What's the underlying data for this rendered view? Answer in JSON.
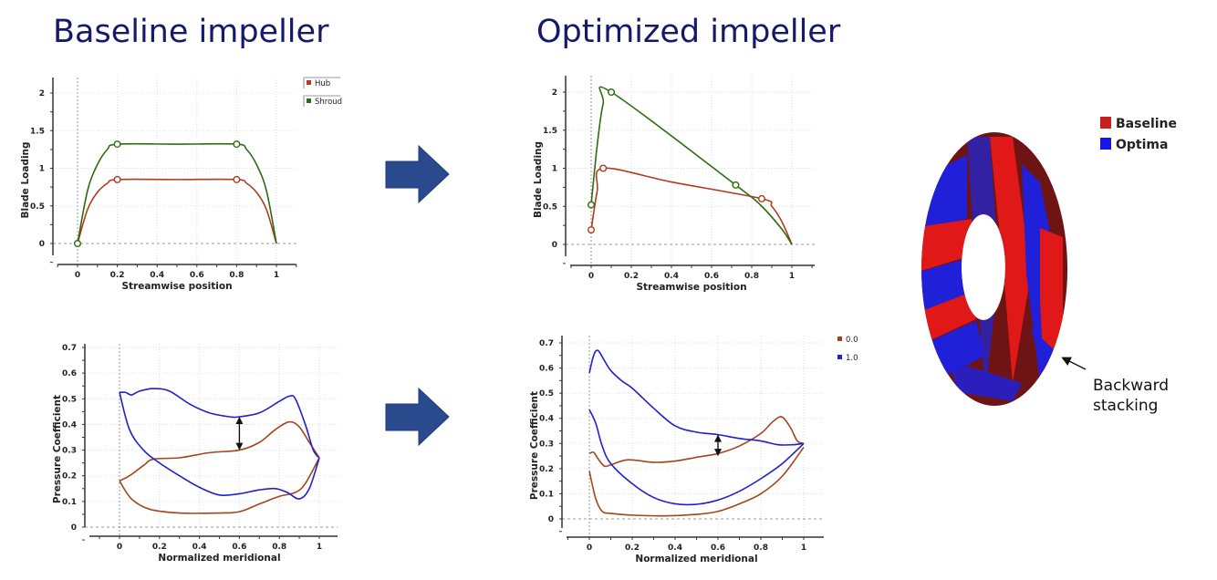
{
  "titles": {
    "left": "Baseline impeller",
    "right": "Optimized impeller"
  },
  "impeller": {
    "legend": [
      {
        "label": "Baseline",
        "color": "#c8201c"
      },
      {
        "label": "Optima",
        "color": "#1616e8"
      }
    ],
    "annotation": [
      "Backward",
      "stacking"
    ]
  },
  "chart_data": [
    {
      "type": "line",
      "xlabel": "Streamwise position",
      "ylabel": "Blade Loading",
      "xlim": [
        -0.1,
        1.1
      ],
      "ylim": [
        -0.2,
        2.2
      ],
      "xticks": [
        "0",
        "0.2",
        "0.4",
        "0.6",
        "0.8",
        "1"
      ],
      "yticks": [
        "0",
        "0.5",
        "1",
        "1.5",
        "2"
      ],
      "grid": true,
      "legend_position": "top-right",
      "series": [
        {
          "name": "Hub",
          "color": "#b23a1e",
          "points": [
            [
              0,
              0
            ],
            [
              0.05,
              0.45
            ],
            [
              0.1,
              0.68
            ],
            [
              0.15,
              0.8
            ],
            [
              0.2,
              0.85
            ],
            [
              0.5,
              0.85
            ],
            [
              0.8,
              0.85
            ],
            [
              0.85,
              0.8
            ],
            [
              0.9,
              0.68
            ],
            [
              0.95,
              0.45
            ],
            [
              1,
              0
            ]
          ],
          "markers": [
            [
              0.2,
              0.85
            ],
            [
              0.8,
              0.85
            ]
          ]
        },
        {
          "name": "Shroud",
          "color": "#2e6b12",
          "points": [
            [
              0,
              0
            ],
            [
              0.05,
              0.7
            ],
            [
              0.1,
              1.05
            ],
            [
              0.15,
              1.25
            ],
            [
              0.2,
              1.32
            ],
            [
              0.5,
              1.32
            ],
            [
              0.8,
              1.32
            ],
            [
              0.85,
              1.25
            ],
            [
              0.9,
              1.05
            ],
            [
              0.95,
              0.7
            ],
            [
              1,
              0
            ]
          ],
          "markers": [
            [
              0,
              0
            ],
            [
              0.2,
              1.32
            ],
            [
              0.8,
              1.32
            ]
          ]
        }
      ]
    },
    {
      "type": "line",
      "xlabel": "Normalized meridional",
      "ylabel": "Pressure Coefficient",
      "xlim": [
        -0.15,
        1.1
      ],
      "ylim": [
        -0.04,
        0.7
      ],
      "xticks": [
        "0",
        "0.2",
        "0.4",
        "0.6",
        "0.8",
        "1"
      ],
      "yticks": [
        "0",
        "0.1",
        "0.2",
        "0.3",
        "0.4",
        "0.5",
        "0.6",
        "0.7"
      ],
      "grid": true,
      "series": [
        {
          "color": "#a0461c",
          "points": [
            [
              0,
              0.18
            ],
            [
              0.05,
              0.2
            ],
            [
              0.12,
              0.24
            ],
            [
              0.17,
              0.265
            ],
            [
              0.3,
              0.27
            ],
            [
              0.45,
              0.29
            ],
            [
              0.6,
              0.3
            ],
            [
              0.7,
              0.33
            ],
            [
              0.78,
              0.38
            ],
            [
              0.85,
              0.41
            ],
            [
              0.9,
              0.39
            ],
            [
              0.95,
              0.33
            ],
            [
              1,
              0.27
            ]
          ]
        },
        {
          "color": "#a0461c",
          "points": [
            [
              0,
              0.18
            ],
            [
              0.06,
              0.11
            ],
            [
              0.15,
              0.07
            ],
            [
              0.3,
              0.055
            ],
            [
              0.5,
              0.055
            ],
            [
              0.6,
              0.06
            ],
            [
              0.7,
              0.09
            ],
            [
              0.8,
              0.12
            ],
            [
              0.88,
              0.135
            ],
            [
              0.93,
              0.17
            ],
            [
              1,
              0.27
            ]
          ]
        },
        {
          "color": "#2020d0",
          "points": [
            [
              0,
              0.525
            ],
            [
              0.03,
              0.525
            ],
            [
              0.06,
              0.515
            ],
            [
              0.1,
              0.53
            ],
            [
              0.17,
              0.54
            ],
            [
              0.25,
              0.53
            ],
            [
              0.35,
              0.48
            ],
            [
              0.45,
              0.445
            ],
            [
              0.55,
              0.43
            ],
            [
              0.6,
              0.43
            ],
            [
              0.7,
              0.445
            ],
            [
              0.8,
              0.49
            ],
            [
              0.85,
              0.51
            ],
            [
              0.88,
              0.5
            ],
            [
              0.93,
              0.4
            ],
            [
              0.97,
              0.3
            ],
            [
              1,
              0.27
            ]
          ]
        },
        {
          "color": "#2020d0",
          "points": [
            [
              0,
              0.525
            ],
            [
              0.05,
              0.38
            ],
            [
              0.12,
              0.3
            ],
            [
              0.2,
              0.25
            ],
            [
              0.3,
              0.2
            ],
            [
              0.4,
              0.155
            ],
            [
              0.5,
              0.125
            ],
            [
              0.6,
              0.13
            ],
            [
              0.7,
              0.145
            ],
            [
              0.78,
              0.15
            ],
            [
              0.84,
              0.135
            ],
            [
              0.9,
              0.11
            ],
            [
              0.95,
              0.15
            ],
            [
              1,
              0.27
            ]
          ]
        }
      ],
      "double_arrow": {
        "x": 0.6,
        "y": [
          0.3,
          0.43
        ]
      }
    },
    {
      "type": "line",
      "xlabel": "Streamwise position",
      "ylabel": "Blade Loading",
      "xlim": [
        -0.1,
        1.1
      ],
      "ylim": [
        -0.2,
        2.2
      ],
      "xticks": [
        "0",
        "0.2",
        "0.4",
        "0.6",
        "0.8",
        "1"
      ],
      "yticks": [
        "0",
        "0.5",
        "1",
        "1.5",
        "2"
      ],
      "grid": true,
      "series": [
        {
          "color": "#b23a1e",
          "points": [
            [
              0,
              0.19
            ],
            [
              0.03,
              0.7
            ],
            [
              0.06,
              1.0
            ],
            [
              0.4,
              0.82
            ],
            [
              0.85,
              0.6
            ],
            [
              0.9,
              0.5
            ],
            [
              0.95,
              0.3
            ],
            [
              1,
              0
            ]
          ],
          "markers": [
            [
              0,
              0.19
            ],
            [
              0.06,
              1.0
            ],
            [
              0.85,
              0.6
            ]
          ]
        },
        {
          "color": "#2e6b12",
          "points": [
            [
              0,
              0.52
            ],
            [
              0.03,
              1.3
            ],
            [
              0.06,
              1.85
            ],
            [
              0.1,
              2.0
            ],
            [
              0.72,
              0.78
            ],
            [
              0.85,
              0.5
            ],
            [
              0.95,
              0.2
            ],
            [
              1,
              0
            ]
          ],
          "markers": [
            [
              0,
              0.52
            ],
            [
              0.1,
              2.0
            ],
            [
              0.72,
              0.78
            ]
          ]
        }
      ]
    },
    {
      "type": "line",
      "xlabel": "Normalized meridional",
      "ylabel": "Pressure Coefficient",
      "xlim": [
        -0.1,
        1.1
      ],
      "ylim": [
        -0.07,
        0.72
      ],
      "xticks": [
        "0",
        "0.2",
        "0.4",
        "0.6",
        "0.8",
        "1"
      ],
      "yticks": [
        "0",
        "0.1",
        "0.2",
        "0.3",
        "0.4",
        "0.5",
        "0.6",
        "0.7"
      ],
      "grid": true,
      "legend_position": "top-right",
      "series": [
        {
          "name": "0.0",
          "color": "#a0461c",
          "points": [
            [
              0,
              0.26
            ],
            [
              0.02,
              0.265
            ],
            [
              0.04,
              0.24
            ],
            [
              0.07,
              0.21
            ],
            [
              0.1,
              0.215
            ],
            [
              0.18,
              0.235
            ],
            [
              0.3,
              0.225
            ],
            [
              0.4,
              0.23
            ],
            [
              0.5,
              0.245
            ],
            [
              0.6,
              0.26
            ],
            [
              0.7,
              0.29
            ],
            [
              0.8,
              0.34
            ],
            [
              0.86,
              0.39
            ],
            [
              0.9,
              0.405
            ],
            [
              0.94,
              0.36
            ],
            [
              0.97,
              0.31
            ],
            [
              1,
              0.3
            ]
          ]
        },
        {
          "color": "#a0461c",
          "points": [
            [
              0,
              0.19
            ],
            [
              0.03,
              0.08
            ],
            [
              0.06,
              0.03
            ],
            [
              0.1,
              0.022
            ],
            [
              0.2,
              0.015
            ],
            [
              0.35,
              0.012
            ],
            [
              0.5,
              0.018
            ],
            [
              0.6,
              0.03
            ],
            [
              0.7,
              0.06
            ],
            [
              0.8,
              0.1
            ],
            [
              0.9,
              0.17
            ],
            [
              1,
              0.285
            ]
          ]
        },
        {
          "name": "1.0",
          "color": "#2020d0",
          "points": [
            [
              0,
              0.58
            ],
            [
              0.02,
              0.65
            ],
            [
              0.04,
              0.67
            ],
            [
              0.07,
              0.63
            ],
            [
              0.1,
              0.59
            ],
            [
              0.15,
              0.55
            ],
            [
              0.2,
              0.52
            ],
            [
              0.3,
              0.44
            ],
            [
              0.4,
              0.37
            ],
            [
              0.5,
              0.345
            ],
            [
              0.6,
              0.335
            ],
            [
              0.7,
              0.32
            ],
            [
              0.8,
              0.31
            ],
            [
              0.88,
              0.295
            ],
            [
              0.95,
              0.295
            ],
            [
              1,
              0.3
            ]
          ]
        },
        {
          "color": "#2020d0",
          "points": [
            [
              0,
              0.435
            ],
            [
              0.03,
              0.38
            ],
            [
              0.06,
              0.29
            ],
            [
              0.1,
              0.22
            ],
            [
              0.2,
              0.14
            ],
            [
              0.3,
              0.085
            ],
            [
              0.4,
              0.06
            ],
            [
              0.5,
              0.058
            ],
            [
              0.6,
              0.075
            ],
            [
              0.7,
              0.11
            ],
            [
              0.8,
              0.16
            ],
            [
              0.9,
              0.22
            ],
            [
              1,
              0.3
            ]
          ]
        }
      ],
      "double_arrow": {
        "x": 0.6,
        "y": [
          0.25,
          0.335
        ]
      }
    }
  ]
}
